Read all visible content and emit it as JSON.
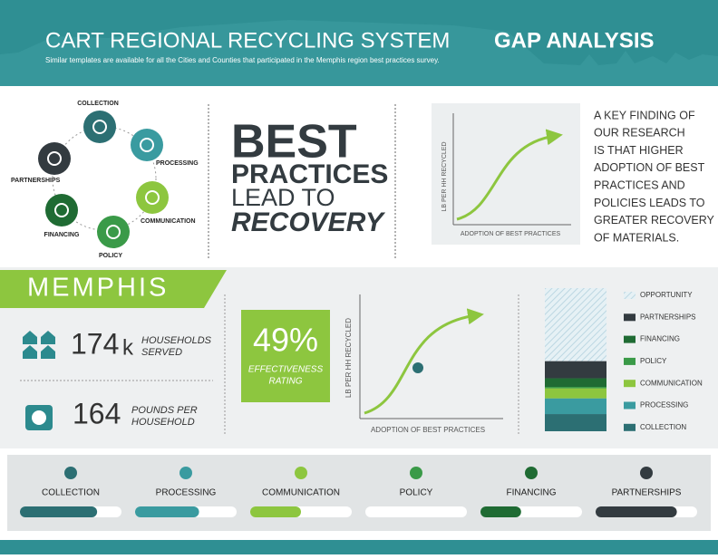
{
  "header": {
    "title": "CART REGIONAL RECYCLING SYSTEM",
    "title_bold": "GAP ANALYSIS",
    "subtitle": "Similar templates are available for all the Cities and Counties that participated in the Memphis region best practices survey."
  },
  "cycle": {
    "labels": [
      "COLLECTION",
      "PROCESSING",
      "COMMUNICATION",
      "POLICY",
      "FINANCING",
      "PARTNERSHIPS"
    ]
  },
  "headline": {
    "line1": "BEST",
    "line2": "PRACTICES",
    "line3": "LEAD TO",
    "line4": "RECOVERY"
  },
  "key_chart": {
    "y_label": "LB PER HH RECYCLED",
    "x_label": "ADOPTION OF BEST PRACTICES"
  },
  "key_finding": [
    "A KEY FINDING OF",
    "OUR RESEARCH",
    "IS THAT HIGHER",
    "ADOPTION OF BEST",
    "PRACTICES AND",
    "POLICIES LEADS TO",
    "GREATER RECOVERY",
    "OF MATERIALS."
  ],
  "city": {
    "name": "MEMPHIS",
    "households": {
      "value": 174,
      "unit": "k",
      "label": [
        "HOUSEHOLDS",
        "SERVED"
      ]
    },
    "pounds": {
      "value": 164,
      "label": [
        "POUNDS PER",
        "HOUSEHOLD"
      ]
    },
    "effectiveness": {
      "value": "49%",
      "label": [
        "EFFECTIVENESS",
        "RATING"
      ]
    }
  },
  "city_chart": {
    "y_label": "LB PER HH RECYCLED",
    "x_label": "ADOPTION OF BEST PRACTICES"
  },
  "stacked": {
    "segments": [
      {
        "name": "OPPORTUNITY",
        "color": "#cfe3ea",
        "value": 51
      },
      {
        "name": "PARTNERSHIPS",
        "color": "#333b40",
        "value": 12
      },
      {
        "name": "FINANCING",
        "color": "#1f6b33",
        "value": 6
      },
      {
        "name": "POLICY",
        "color": "#3a9a48",
        "value": 1
      },
      {
        "name": "COMMUNICATION",
        "color": "#8dc63f",
        "value": 7
      },
      {
        "name": "PROCESSING",
        "color": "#3a9ba0",
        "value": 11
      },
      {
        "name": "COLLECTION",
        "color": "#2c6f73",
        "value": 12
      }
    ]
  },
  "progress": [
    {
      "name": "COLLECTION",
      "color": "#2c6f73",
      "value": 76
    },
    {
      "name": "PROCESSING",
      "color": "#3a9ba0",
      "value": 63
    },
    {
      "name": "COMMUNICATION",
      "color": "#8dc63f",
      "value": 50
    },
    {
      "name": "POLICY",
      "color": "#3a9a48",
      "value": 0
    },
    {
      "name": "FINANCING",
      "color": "#1f6b33",
      "value": 40
    },
    {
      "name": "PARTNERSHIPS",
      "color": "#333b40",
      "value": 80
    }
  ]
}
